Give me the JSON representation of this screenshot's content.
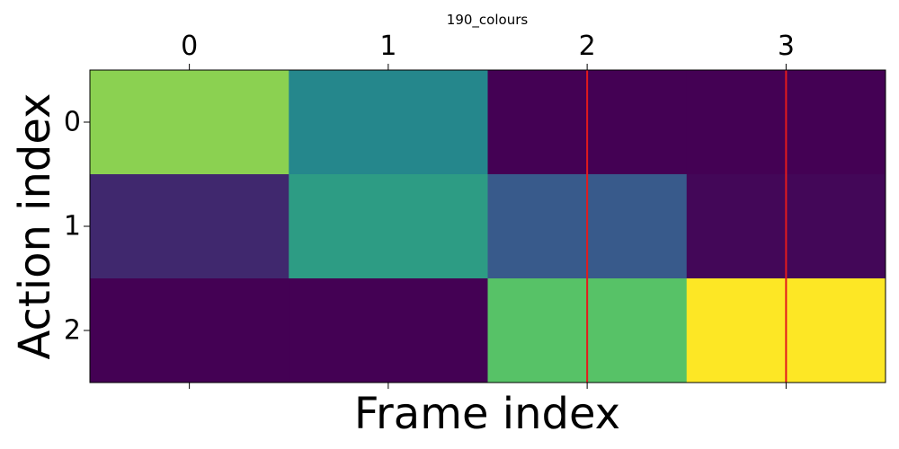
{
  "chart_data": {
    "type": "heatmap",
    "title": "190_colours",
    "xlabel": "Frame index",
    "ylabel": "Action index",
    "x_ticks": [
      "0",
      "1",
      "2",
      "3"
    ],
    "y_ticks": [
      "0",
      "1",
      "2"
    ],
    "x_tick_position": "top",
    "colormap": "viridis",
    "value_range": [
      0,
      1
    ],
    "values": [
      [
        0.82,
        0.46,
        0.0,
        0.0
      ],
      [
        0.12,
        0.55,
        0.28,
        0.02
      ],
      [
        0.0,
        0.0,
        0.72,
        1.0
      ]
    ],
    "vertical_markers": {
      "x": [
        2,
        3
      ],
      "color": "#e31a1c"
    },
    "grid": false
  }
}
